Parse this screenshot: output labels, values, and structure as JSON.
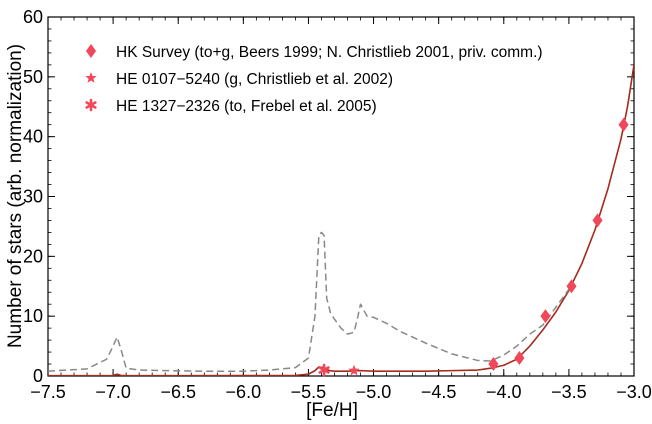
{
  "chart_data": {
    "type": "line",
    "title": "",
    "xlabel": "[Fe/H]",
    "ylabel": "Number of stars (arb. normalization)",
    "xlim": [
      -7.5,
      -3.0
    ],
    "ylim": [
      0,
      60
    ],
    "xticks": [
      -7.5,
      -7.0,
      -6.5,
      -6.0,
      -5.5,
      -5.0,
      -4.5,
      -4.0,
      -3.5,
      -3.0
    ],
    "xtick_labels": [
      "−7.5",
      "−7.0",
      "−6.5",
      "−6.0",
      "−5.5",
      "−5.0",
      "−4.5",
      "−4.0",
      "−3.5",
      "−3.0"
    ],
    "yticks": [
      0,
      10,
      20,
      30,
      40,
      50,
      60
    ],
    "ytick_labels": [
      "0",
      "10",
      "20",
      "30",
      "40",
      "50",
      "60"
    ],
    "legend_position": "top-left",
    "colors": {
      "model_solid": "#a52a1a",
      "model_dashed": "#888888",
      "markers": "#f0485a"
    },
    "series": [
      {
        "name": "model (solid)",
        "style": "solid",
        "x": [
          -7.5,
          -7.0,
          -6.97,
          -6.94,
          -6.9,
          -6.5,
          -6.0,
          -5.6,
          -5.5,
          -5.45,
          -5.42,
          -5.38,
          -5.34,
          -5.3,
          -5.2,
          -5.1,
          -5.0,
          -4.8,
          -4.6,
          -4.4,
          -4.2,
          -4.1,
          -4.0,
          -3.9,
          -3.8,
          -3.7,
          -3.6,
          -3.5,
          -3.4,
          -3.3,
          -3.2,
          -3.1,
          -3.05,
          -3.0
        ],
        "values": [
          0.05,
          0.08,
          0.3,
          0.1,
          0.05,
          0.05,
          0.08,
          0.1,
          0.3,
          0.9,
          1.5,
          1.4,
          0.9,
          0.8,
          0.8,
          0.9,
          0.8,
          0.8,
          0.8,
          0.9,
          1.0,
          1.3,
          1.8,
          2.8,
          5.0,
          7.7,
          10.7,
          14.3,
          18.8,
          24.4,
          31.3,
          39.6,
          45.0,
          52.0
        ]
      },
      {
        "name": "model (dashed)",
        "style": "dashed",
        "x": [
          -7.5,
          -7.2,
          -7.05,
          -7.0,
          -6.97,
          -6.94,
          -6.9,
          -6.8,
          -6.6,
          -6.3,
          -6.0,
          -5.8,
          -5.6,
          -5.5,
          -5.45,
          -5.42,
          -5.4,
          -5.38,
          -5.36,
          -5.33,
          -5.3,
          -5.25,
          -5.2,
          -5.15,
          -5.12,
          -5.1,
          -5.05,
          -5.0,
          -4.9,
          -4.8,
          -4.6,
          -4.4,
          -4.2,
          -4.1,
          -4.0,
          -3.9,
          -3.8,
          -3.7,
          -3.6,
          -3.5
        ],
        "values": [
          0.8,
          1.2,
          2.8,
          5.0,
          6.5,
          4.5,
          1.3,
          1.0,
          0.9,
          0.8,
          0.8,
          1.0,
          1.4,
          3.0,
          10.0,
          23.5,
          24.0,
          23.5,
          13.0,
          10.5,
          9.5,
          8.0,
          7.0,
          7.3,
          10.0,
          12.0,
          10.0,
          9.8,
          8.8,
          7.5,
          5.5,
          3.7,
          2.6,
          2.5,
          3.5,
          5.0,
          7.0,
          8.5,
          11.5,
          14.5
        ]
      },
      {
        "name": "HK Survey (to+g, Beers 1999; N. Christlieb 2001, priv. comm.)",
        "marker": "diamond",
        "x": [
          -4.08,
          -3.88,
          -3.68,
          -3.48,
          -3.28,
          -3.08
        ],
        "values": [
          2.0,
          3.0,
          10.0,
          15.0,
          26.0,
          42.0
        ]
      },
      {
        "name": "HE 0107−5240 (g, Christlieb et al. 2002)",
        "marker": "star",
        "x": [
          -5.15
        ],
        "values": [
          0.9
        ]
      },
      {
        "name": "HE 1327−2326 (to, Frebel et al. 2005)",
        "marker": "asterisk",
        "x": [
          -5.38
        ],
        "values": [
          1.0
        ]
      }
    ]
  },
  "legend": {
    "hk_survey": "HK Survey (to+g, Beers 1999; N. Christlieb 2001, priv. comm.)",
    "he0107": "HE 0107−5240 (g, Christlieb et al. 2002)",
    "he1327": "HE 1327−2326 (to, Frebel et al. 2005)"
  }
}
